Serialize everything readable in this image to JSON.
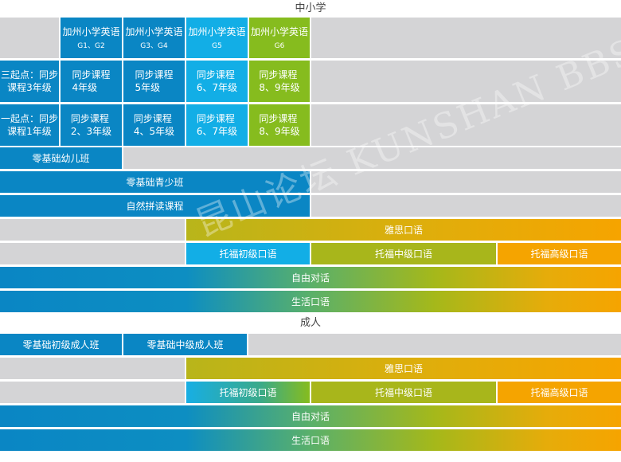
{
  "sections": {
    "primary": "中小学",
    "adult": "成人"
  },
  "header": [
    {
      "title": "加州小学英语",
      "sub": "G1、G2"
    },
    {
      "title": "加州小学英语",
      "sub": "G3、G4"
    },
    {
      "title": "加州小学英语",
      "sub": "G5"
    },
    {
      "title": "加州小学英语",
      "sub": "G6"
    }
  ],
  "row_three": {
    "label_line1": "三起点：同步",
    "label_line2": "课程3年级",
    "cells": [
      {
        "l1": "同步课程",
        "l2": "4年级"
      },
      {
        "l1": "同步课程",
        "l2": "5年级"
      },
      {
        "l1": "同步课程",
        "l2": "6、7年级"
      },
      {
        "l1": "同步课程",
        "l2": "8、9年级"
      }
    ]
  },
  "row_one": {
    "label_line1": "一起点：同步",
    "label_line2": "课程1年级",
    "cells": [
      {
        "l1": "同步课程",
        "l2": "2、3年级"
      },
      {
        "l1": "同步课程",
        "l2": "4、5年级"
      },
      {
        "l1": "同步课程",
        "l2": "6、7年级"
      },
      {
        "l1": "同步课程",
        "l2": "8、9年级"
      }
    ]
  },
  "bars": {
    "kindergarten": "零基础幼儿班",
    "youth": "零基础青少班",
    "phonics": "自然拼读课程",
    "ielts": "雅思口语",
    "toefl_basic": "托福初级口语",
    "toefl_mid": "托福中级口语",
    "toefl_adv": "托福高级口语",
    "free_talk": "自由对话",
    "life": "生活口语"
  },
  "adult_bars": {
    "basic": "零基础初级成人班",
    "mid": "零基础中级成人班",
    "ielts": "雅思口语",
    "toefl_basic": "托福初级口语",
    "toefl_mid": "托福中级口语",
    "toefl_adv": "托福高级口语",
    "free_talk": "自由对话",
    "life": "生活口语"
  },
  "watermark": "昆山论坛 KUNSHAN BBS",
  "colors": {
    "blue": "#0a86c4",
    "cyan": "#12aee6",
    "green": "#86bc1e",
    "olive": "#a8b61b",
    "orange": "#f5a400",
    "gray": "#d4d4d6"
  }
}
